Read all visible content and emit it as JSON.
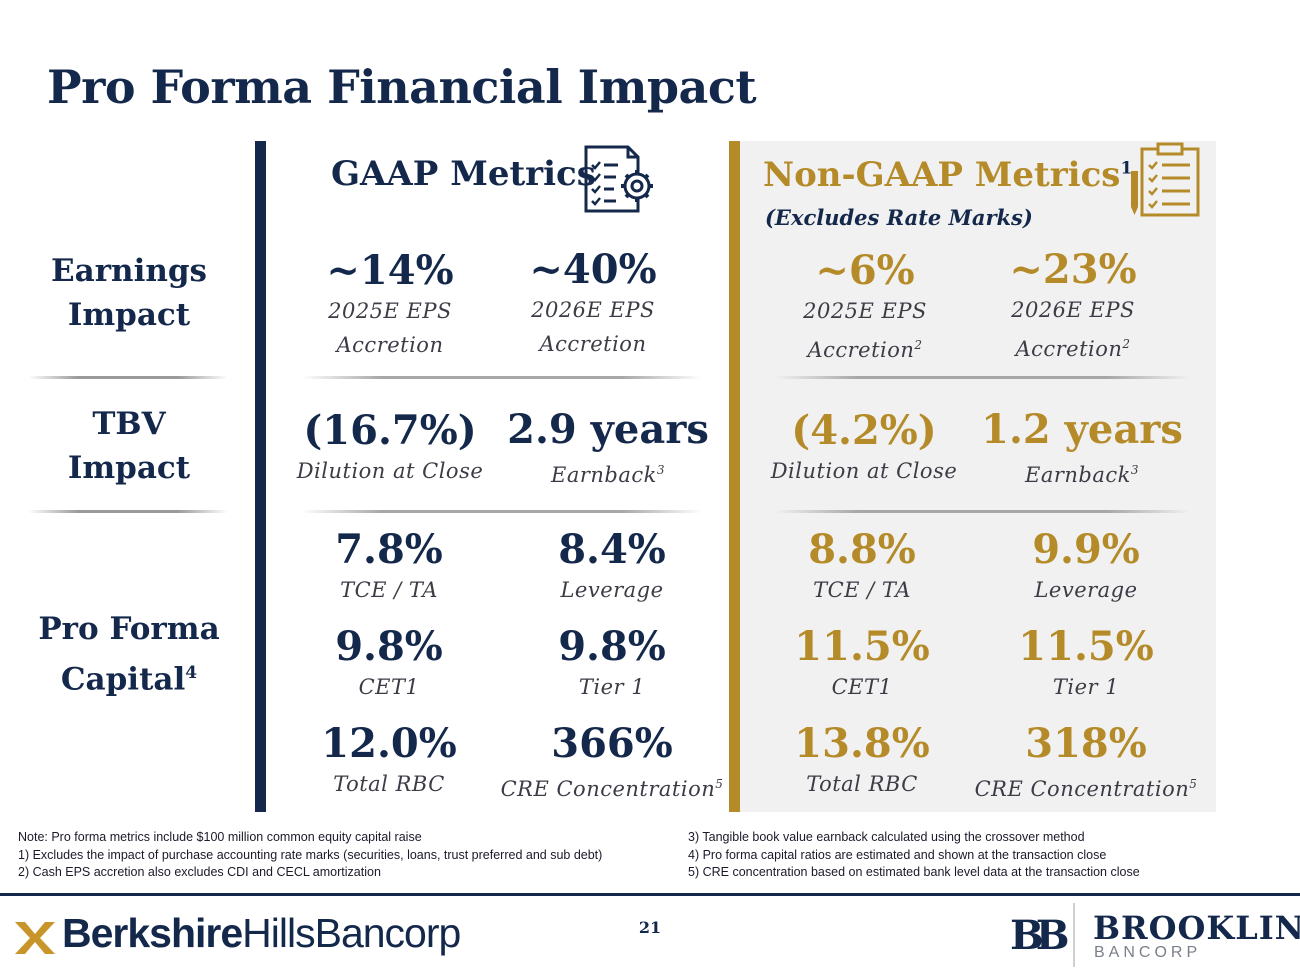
{
  "title": "Pro Forma Financial Impact",
  "row_labels": {
    "earnings": [
      "Earnings",
      "Impact"
    ],
    "tbv": [
      "TBV",
      "Impact"
    ],
    "capital": [
      "Pro Forma",
      "Capital"
    ],
    "capital_sup": "4"
  },
  "gaap": {
    "heading": "GAAP Metrics",
    "earnings": [
      {
        "value": "~14%",
        "label1": "2025E EPS",
        "label2": "Accretion",
        "sup": ""
      },
      {
        "value": "~40%",
        "label1": "2026E EPS",
        "label2": "Accretion",
        "sup": ""
      }
    ],
    "tbv": [
      {
        "value": "(16.7%)",
        "label": "Dilution at Close",
        "sup": ""
      },
      {
        "value": "2.9 years",
        "label": "Earnback",
        "sup": "3"
      }
    ],
    "capital": [
      {
        "value": "7.8%",
        "label": "TCE / TA",
        "sup": ""
      },
      {
        "value": "8.4%",
        "label": "Leverage",
        "sup": ""
      },
      {
        "value": "9.8%",
        "label": "CET1",
        "sup": ""
      },
      {
        "value": "9.8%",
        "label": "Tier 1",
        "sup": ""
      },
      {
        "value": "12.0%",
        "label": "Total RBC",
        "sup": ""
      },
      {
        "value": "366%",
        "label": "CRE Concentration",
        "sup": "5"
      }
    ]
  },
  "non_gaap": {
    "heading": "Non-GAAP Metrics",
    "heading_sup": "1",
    "subheading": "(Excludes Rate Marks)",
    "earnings": [
      {
        "value": "~6%",
        "label1": "2025E EPS",
        "label2": "Accretion",
        "sup": "2"
      },
      {
        "value": "~23%",
        "label1": "2026E EPS",
        "label2": "Accretion",
        "sup": "2"
      }
    ],
    "tbv": [
      {
        "value": "(4.2%)",
        "label": "Dilution at Close",
        "sup": ""
      },
      {
        "value": "1.2 years",
        "label": "Earnback",
        "sup": "3"
      }
    ],
    "capital": [
      {
        "value": "8.8%",
        "label": "TCE / TA",
        "sup": ""
      },
      {
        "value": "9.9%",
        "label": "Leverage",
        "sup": ""
      },
      {
        "value": "11.5%",
        "label": "CET1",
        "sup": ""
      },
      {
        "value": "11.5%",
        "label": "Tier 1",
        "sup": ""
      },
      {
        "value": "13.8%",
        "label": "Total RBC",
        "sup": ""
      },
      {
        "value": "318%",
        "label": "CRE Concentration",
        "sup": "5"
      }
    ]
  },
  "notes": {
    "left": [
      "Note: Pro forma metrics include $100 million common equity capital raise",
      "1) Excludes the impact of purchase accounting rate marks (securities, loans, trust preferred and sub debt)",
      "2) Cash EPS accretion also excludes CDI and CECL amortization"
    ],
    "right": [
      "3) Tangible book value earnback calculated using the crossover method",
      "4) Pro forma capital ratios are estimated and shown at the transaction close",
      "5) CRE concentration based on estimated bank level data at the transaction close"
    ]
  },
  "footer": {
    "page_number": "21",
    "left_brand_bold": "Berkshire",
    "left_brand_light": "HillsBancorp",
    "right_brand_top": "BROOKLINE",
    "right_brand_bottom": "BANCORP",
    "right_logo_letters": "BB"
  },
  "colors": {
    "navy": "#14284b",
    "gold": "#b58b2a",
    "panel": "#f1f1f1"
  },
  "icons": [
    "clipboard-gear-icon",
    "clipboard-checklist-icon",
    "berkshire-x-icon"
  ]
}
